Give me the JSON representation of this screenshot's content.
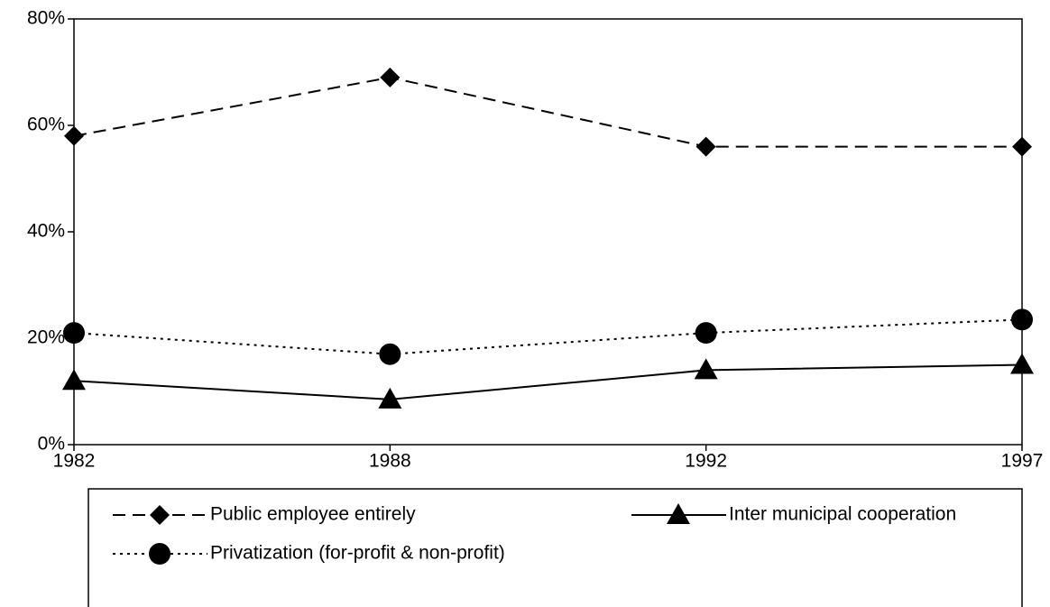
{
  "chart_data": {
    "type": "line",
    "categories": [
      "1982",
      "1988",
      "1992",
      "1997"
    ],
    "series": [
      {
        "name": "Public employee entirely",
        "color": "#000000",
        "dash": "dashed",
        "marker": "diamond",
        "values": [
          58,
          69,
          56,
          56
        ]
      },
      {
        "name": "Inter municipal cooperation",
        "color": "#000000",
        "dash": "solid",
        "marker": "triangle",
        "values": [
          12,
          8.5,
          14,
          15
        ]
      },
      {
        "name": "Privatization (for-profit & non-profit)",
        "color": "#000000",
        "dash": "dotted",
        "marker": "circle",
        "values": [
          21,
          17,
          21,
          23.5
        ]
      }
    ],
    "ylim": [
      0,
      80
    ],
    "yticks": [
      {
        "value": 0,
        "label": "0%"
      },
      {
        "value": 20,
        "label": "20%"
      },
      {
        "value": 40,
        "label": "40%"
      },
      {
        "value": 60,
        "label": "60%"
      },
      {
        "value": 80,
        "label": "80%"
      }
    ],
    "grid": false,
    "legend": "bottom"
  }
}
